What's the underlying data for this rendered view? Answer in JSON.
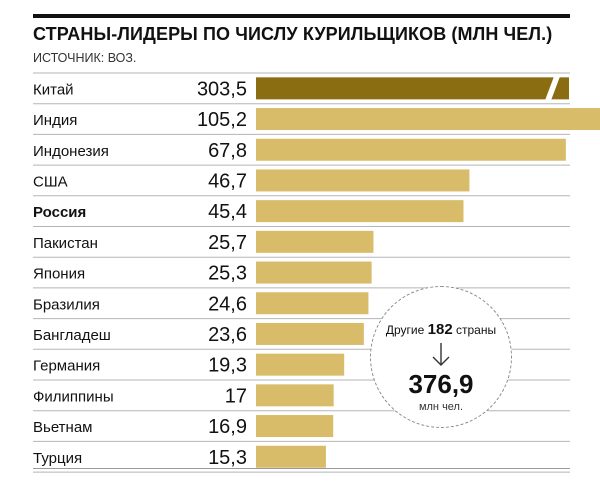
{
  "title": "СТРАНЫ-ЛИДЕРЫ ПО ЧИСЛУ КУРИЛЬЩИКОВ (МЛН ЧЕЛ.)",
  "source": "ИСТОЧНИК: ВОЗ.",
  "chart_data": {
    "type": "bar",
    "orientation": "horizontal",
    "title": "СТРАНЫ-ЛИДЕРЫ ПО ЧИСЛУ КУРИЛЬЩИКОВ (МЛН ЧЕЛ.)",
    "categories": [
      "Китай",
      "Индия",
      "Индонезия",
      "США",
      "Россия",
      "Пакистан",
      "Япония",
      "Бразилия",
      "Бангладеш",
      "Германия",
      "Филиппины",
      "Вьетнам",
      "Турция"
    ],
    "values": [
      303.5,
      105.2,
      67.8,
      46.7,
      45.4,
      25.7,
      25.3,
      24.6,
      23.6,
      19.3,
      17,
      16.9,
      15.3
    ],
    "value_labels": [
      "303,5",
      "105,2",
      "67,8",
      "46,7",
      "45,4",
      "25,7",
      "25,3",
      "24,6",
      "23,6",
      "19,3",
      "17",
      "16,9",
      "15,3"
    ],
    "highlight_category": "Россия",
    "broken_bar_category": "Китай",
    "colors": {
      "bar": "#d9bc6a",
      "bar_top": "#8a6d10",
      "row_separator": "#b5b5b5",
      "text": "#111111"
    },
    "grid": false,
    "legend": "none"
  },
  "others": {
    "label": "Другие",
    "count": "182",
    "suffix": "страны",
    "total": "376,9",
    "unit": "млн чел."
  }
}
